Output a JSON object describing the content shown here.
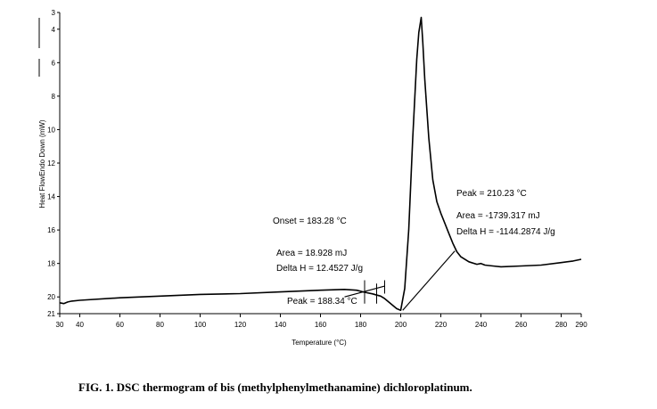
{
  "chart_data": {
    "type": "line",
    "xlabel": "Temperature (°C)",
    "ylabel": "Heat FlowEndo Down (mW)",
    "xlim": [
      30,
      290
    ],
    "ylim": [
      3,
      21
    ],
    "y_inverted": true,
    "x_ticks": [
      30,
      40,
      60,
      80,
      100,
      120,
      140,
      160,
      180,
      200,
      220,
      240,
      260,
      280,
      290
    ],
    "y_ticks": [
      3,
      4,
      6,
      8,
      10,
      12,
      14,
      16,
      18,
      20,
      21
    ],
    "grid": false,
    "legend": "none",
    "series": [
      {
        "color": "#000000",
        "x": [
          30,
          32,
          34,
          36,
          40,
          60,
          80,
          100,
          120,
          140,
          160,
          172,
          178,
          182,
          186,
          188.34,
          190,
          192,
          194,
          196,
          198,
          200,
          202,
          204,
          206,
          208,
          209,
          210.23,
          211,
          212,
          214,
          216,
          218,
          220,
          222,
          224,
          226,
          228,
          230,
          234,
          238,
          240,
          242,
          246,
          250,
          260,
          270,
          280,
          286,
          290
        ],
        "y": [
          20.35,
          20.4,
          20.3,
          20.25,
          20.2,
          20.05,
          19.95,
          19.85,
          19.8,
          19.7,
          19.6,
          19.55,
          19.6,
          19.72,
          19.82,
          19.9,
          19.95,
          20.1,
          20.3,
          20.5,
          20.7,
          20.8,
          19.5,
          16.0,
          10.5,
          5.8,
          4.2,
          3.3,
          4.8,
          7.0,
          10.5,
          13.0,
          14.3,
          15.0,
          15.6,
          16.2,
          16.8,
          17.3,
          17.6,
          17.9,
          18.05,
          18.0,
          18.1,
          18.15,
          18.2,
          18.15,
          18.1,
          17.95,
          17.85,
          17.75
        ]
      }
    ],
    "baselines": [
      {
        "x": [
          172,
          192
        ],
        "y": [
          20.0,
          19.35
        ]
      },
      {
        "x": [
          201,
          227
        ],
        "y": [
          20.8,
          17.25
        ]
      }
    ],
    "markers": [
      {
        "x": 182,
        "y": [
          19.0,
          20.4
        ]
      },
      {
        "x": 188,
        "y": [
          19.2,
          20.4
        ]
      },
      {
        "x": 192,
        "y": [
          19.0,
          19.8
        ]
      }
    ],
    "annotations": [
      {
        "text": "Onset = 183.28 °C"
      },
      {
        "text": "Area = 18.928 mJ"
      },
      {
        "text": "Delta H = 12.4527 J/g"
      },
      {
        "text": "Peak = 188.34 °C"
      },
      {
        "text": "Peak = 210.23 °C"
      },
      {
        "text": "Area = -1739.317 mJ"
      },
      {
        "text": "Delta H = -1144.2874 J/g"
      }
    ]
  },
  "caption": "FIG. 1. DSC thermogram of bis (methylphenylmethanamine) dichloroplatinum."
}
